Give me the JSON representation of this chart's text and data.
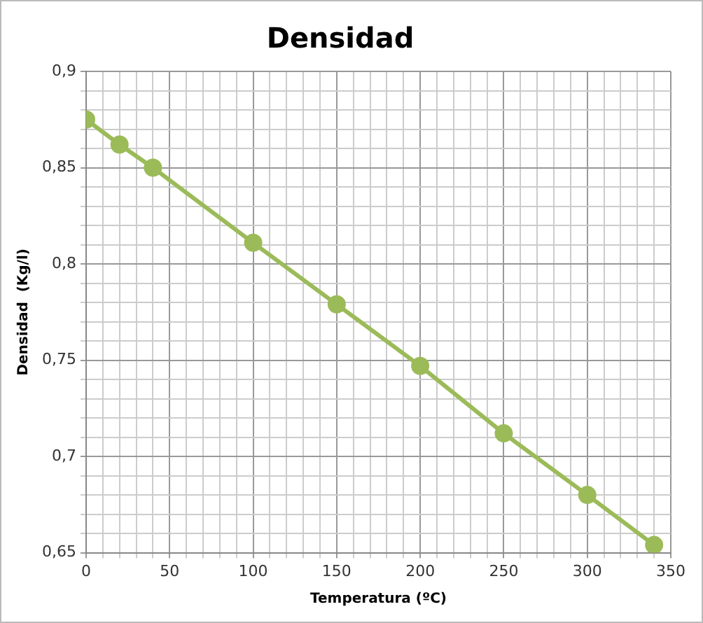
{
  "chart_data": {
    "type": "line",
    "title": "Densidad",
    "xlabel": "Temperatura (ºC)",
    "ylabel": "Densidad  (Kg/l)",
    "x": [
      0,
      20,
      40,
      100,
      150,
      200,
      250,
      300,
      340
    ],
    "series": [
      {
        "color": "#9bbb59",
        "values": [
          0.875,
          0.862,
          0.85,
          0.811,
          0.779,
          0.747,
          0.712,
          0.68,
          0.654
        ]
      }
    ],
    "xlim": [
      0,
      350
    ],
    "xticks": [
      0,
      {
        "value": 10,
        "label": null
      },
      {
        "value": 20,
        "label": null
      },
      {
        "value": 30,
        "label": null
      },
      {
        "value": 40,
        "label": null
      },
      50,
      {
        "value": 60,
        "label": null
      },
      {
        "value": 70,
        "label": null
      },
      {
        "value": 80,
        "label": null
      },
      {
        "value": 90,
        "label": null
      },
      100,
      {
        "value": 110,
        "label": null
      },
      {
        "value": 120,
        "label": null
      },
      {
        "value": 130,
        "label": null
      },
      {
        "value": 140,
        "label": null
      },
      150,
      {
        "value": 160,
        "label": null
      },
      {
        "value": 170,
        "label": null
      },
      {
        "value": 180,
        "label": null
      },
      {
        "value": 190,
        "label": null
      },
      200,
      {
        "value": 210,
        "label": null
      },
      {
        "value": 220,
        "label": null
      },
      {
        "value": 230,
        "label": null
      },
      {
        "value": 240,
        "label": null
      },
      250,
      {
        "value": 260,
        "label": null
      },
      {
        "value": 270,
        "label": null
      },
      {
        "value": 280,
        "label": null
      },
      {
        "value": 290,
        "label": null
      },
      300,
      {
        "value": 310,
        "label": null
      },
      {
        "value": 320,
        "label": null
      },
      {
        "value": 330,
        "label": null
      },
      {
        "value": 340,
        "label": null
      },
      350
    ],
    "ylim": [
      0.65,
      0.9
    ],
    "yticks": [
      {
        "value": 0.65,
        "label": "0,65"
      },
      {
        "value": 0.66,
        "label": null
      },
      {
        "value": 0.67,
        "label": null
      },
      {
        "value": 0.68,
        "label": null
      },
      {
        "value": 0.69,
        "label": null
      },
      {
        "value": 0.7,
        "label": "0,7"
      },
      {
        "value": 0.71,
        "label": null
      },
      {
        "value": 0.72,
        "label": null
      },
      {
        "value": 0.73,
        "label": null
      },
      {
        "value": 0.74,
        "label": null
      },
      {
        "value": 0.75,
        "label": "0,75"
      },
      {
        "value": 0.76,
        "label": null
      },
      {
        "value": 0.77,
        "label": null
      },
      {
        "value": 0.78,
        "label": null
      },
      {
        "value": 0.79,
        "label": null
      },
      {
        "value": 0.8,
        "label": "0,8"
      },
      {
        "value": 0.81,
        "label": null
      },
      {
        "value": 0.82,
        "label": null
      },
      {
        "value": 0.83,
        "label": null
      },
      {
        "value": 0.84,
        "label": null
      },
      {
        "value": 0.85,
        "label": "0,85"
      },
      {
        "value": 0.86,
        "label": null
      },
      {
        "value": 0.87,
        "label": null
      },
      {
        "value": 0.88,
        "label": null
      },
      {
        "value": 0.89,
        "label": null
      },
      {
        "value": 0.9,
        "label": "0,9"
      }
    ],
    "grid": true,
    "marker": "circle",
    "line_style": "solid"
  }
}
